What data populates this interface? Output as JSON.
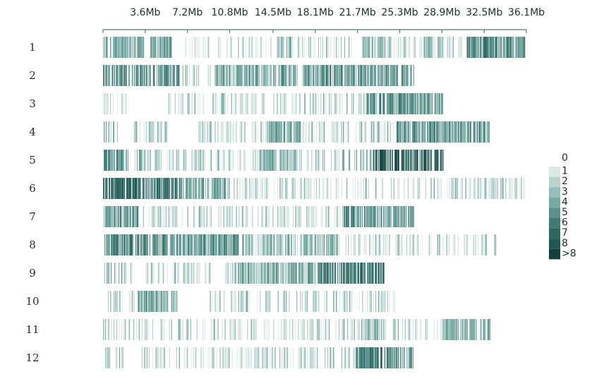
{
  "chart_data": {
    "type": "heatmap",
    "title": "",
    "xlabel": "",
    "ylabel": "",
    "x_unit": "Mb",
    "x_range_mb": [
      0,
      36.1
    ],
    "x_tick_labels": [
      "3.6Mb",
      "7.2Mb",
      "10.8Mb",
      "14.5Mb",
      "18.1Mb",
      "21.7Mb",
      "25.3Mb",
      "28.9Mb",
      "32.5Mb",
      "36.1Mb"
    ],
    "x_ticks_mb": [
      3.6,
      7.2,
      10.8,
      14.5,
      18.1,
      21.7,
      25.3,
      28.9,
      32.5,
      36.1
    ],
    "legend": {
      "position": "right",
      "levels": [
        "0",
        "1",
        "2",
        "3",
        "4",
        "5",
        "6",
        "7",
        "8",
        ">8"
      ],
      "colors": [
        "#ffffff",
        "#dce8e6",
        "#b9d3cf",
        "#97beb8",
        "#76a9a2",
        "#58928b",
        "#3f7c75",
        "#2d6861",
        "#205751",
        "#163f3c"
      ]
    },
    "chromosomes": [
      {
        "name": "1",
        "length_mb": 36.1,
        "dense": [
          [
            0,
            3.5,
            4
          ],
          [
            4.0,
            6.0,
            4
          ],
          [
            14.8,
            16.0,
            3
          ],
          [
            22.0,
            24.5,
            3
          ],
          [
            27.0,
            29.0,
            3
          ],
          [
            31.0,
            36.0,
            6
          ]
        ],
        "sparse": [
          [
            7.0,
            11.0,
            1
          ],
          [
            11.5,
            14.5,
            2
          ],
          [
            16.0,
            21.5,
            2
          ],
          [
            24.5,
            27.0,
            2
          ],
          [
            29.0,
            31.0,
            2
          ]
        ]
      },
      {
        "name": "2",
        "length_mb": 27.0,
        "dense": [
          [
            0,
            6.5,
            5
          ],
          [
            17.0,
            26.5,
            5
          ],
          [
            9.5,
            16.5,
            4
          ]
        ],
        "sparse": [
          [
            6.5,
            9.5,
            2
          ],
          [
            16.5,
            17.0,
            2
          ]
        ]
      },
      {
        "name": "3",
        "length_mb": 29.0,
        "dense": [
          [
            22.5,
            29.0,
            5
          ]
        ],
        "sparse": [
          [
            0,
            2.2,
            1
          ],
          [
            5.5,
            22.5,
            2
          ]
        ]
      },
      {
        "name": "4",
        "length_mb": 33.0,
        "dense": [
          [
            25.0,
            33.0,
            5
          ],
          [
            14.0,
            17.0,
            4
          ]
        ],
        "sparse": [
          [
            0,
            5.5,
            3
          ],
          [
            8.0,
            14.0,
            2
          ],
          [
            17.0,
            25.0,
            2
          ]
        ]
      },
      {
        "name": "5",
        "length_mb": 29.0,
        "dense": [
          [
            23.0,
            29.0,
            8
          ],
          [
            0,
            2.0,
            5
          ],
          [
            13.0,
            16.5,
            4
          ]
        ],
        "sparse": [
          [
            2.0,
            9.0,
            3
          ],
          [
            9.0,
            13.0,
            2
          ],
          [
            16.5,
            23.0,
            3
          ]
        ]
      },
      {
        "name": "6",
        "length_mb": 36.1,
        "dense": [
          [
            0,
            6.5,
            7
          ],
          [
            6.5,
            10.5,
            4
          ]
        ],
        "sparse": [
          [
            10.5,
            15.0,
            2
          ],
          [
            15.0,
            36.0,
            2
          ]
        ]
      },
      {
        "name": "7",
        "length_mb": 26.5,
        "dense": [
          [
            0,
            3.0,
            5
          ],
          [
            20.5,
            26.5,
            5
          ]
        ],
        "sparse": [
          [
            3.0,
            11.0,
            2
          ],
          [
            11.0,
            20.5,
            2
          ]
        ]
      },
      {
        "name": "8",
        "length_mb": 33.5,
        "dense": [
          [
            0,
            5.5,
            6
          ],
          [
            5.5,
            12.0,
            5
          ],
          [
            12.0,
            20.0,
            3
          ]
        ],
        "sparse": [
          [
            20.0,
            25.0,
            2
          ],
          [
            25.0,
            33.5,
            2
          ]
        ]
      },
      {
        "name": "9",
        "length_mb": 24.0,
        "dense": [
          [
            18.0,
            24.0,
            6
          ],
          [
            11.0,
            18.0,
            4
          ]
        ],
        "sparse": [
          [
            0,
            2.5,
            3
          ],
          [
            3.5,
            11.0,
            2
          ]
        ]
      },
      {
        "name": "10",
        "length_mb": 25.0,
        "dense": [
          [
            3.0,
            6.5,
            4
          ]
        ],
        "sparse": [
          [
            0,
            3.0,
            2
          ],
          [
            9.0,
            25.0,
            2
          ]
        ]
      },
      {
        "name": "11",
        "length_mb": 33.0,
        "dense": [
          [
            22.0,
            24.0,
            3
          ],
          [
            29.0,
            33.0,
            4
          ]
        ],
        "sparse": [
          [
            0,
            22.0,
            2
          ],
          [
            24.0,
            29.0,
            2
          ]
        ]
      },
      {
        "name": "12",
        "length_mb": 26.5,
        "dense": [
          [
            21.5,
            26.5,
            6
          ]
        ],
        "sparse": [
          [
            0,
            1.8,
            3
          ],
          [
            3.0,
            21.5,
            2
          ]
        ]
      }
    ]
  }
}
